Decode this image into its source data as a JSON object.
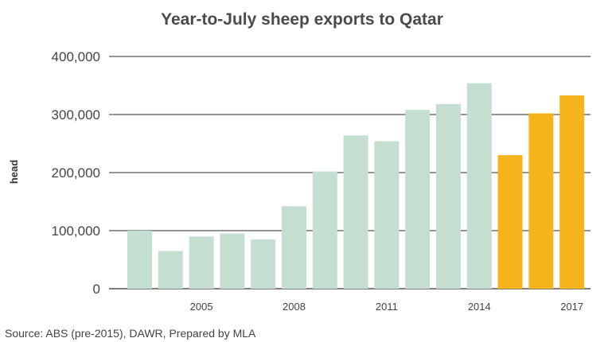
{
  "chart_data": {
    "type": "bar",
    "title": "Year-to-July sheep exports to Qatar",
    "ylabel": "head",
    "xlabel": "",
    "ylim": [
      0,
      400000
    ],
    "yticks": [
      "0",
      "100,000",
      "200,000",
      "300,000",
      "400,000"
    ],
    "xticks": [
      "2005",
      "2008",
      "2011",
      "2014",
      "2017"
    ],
    "years": [
      2003,
      2004,
      2005,
      2006,
      2007,
      2008,
      2009,
      2010,
      2011,
      2012,
      2013,
      2014,
      2015,
      2016,
      2017
    ],
    "values": [
      100000,
      65000,
      90000,
      95000,
      85000,
      142000,
      202000,
      264000,
      254000,
      308000,
      318000,
      354000,
      230000,
      302000,
      333000
    ],
    "colors": {
      "pre_2015": "#c4dfcf",
      "from_2015": "#f5b31c",
      "grid": "#555555"
    },
    "grid": true
  },
  "source": "Source: ABS (pre-2015), DAWR, Prepared by MLA"
}
